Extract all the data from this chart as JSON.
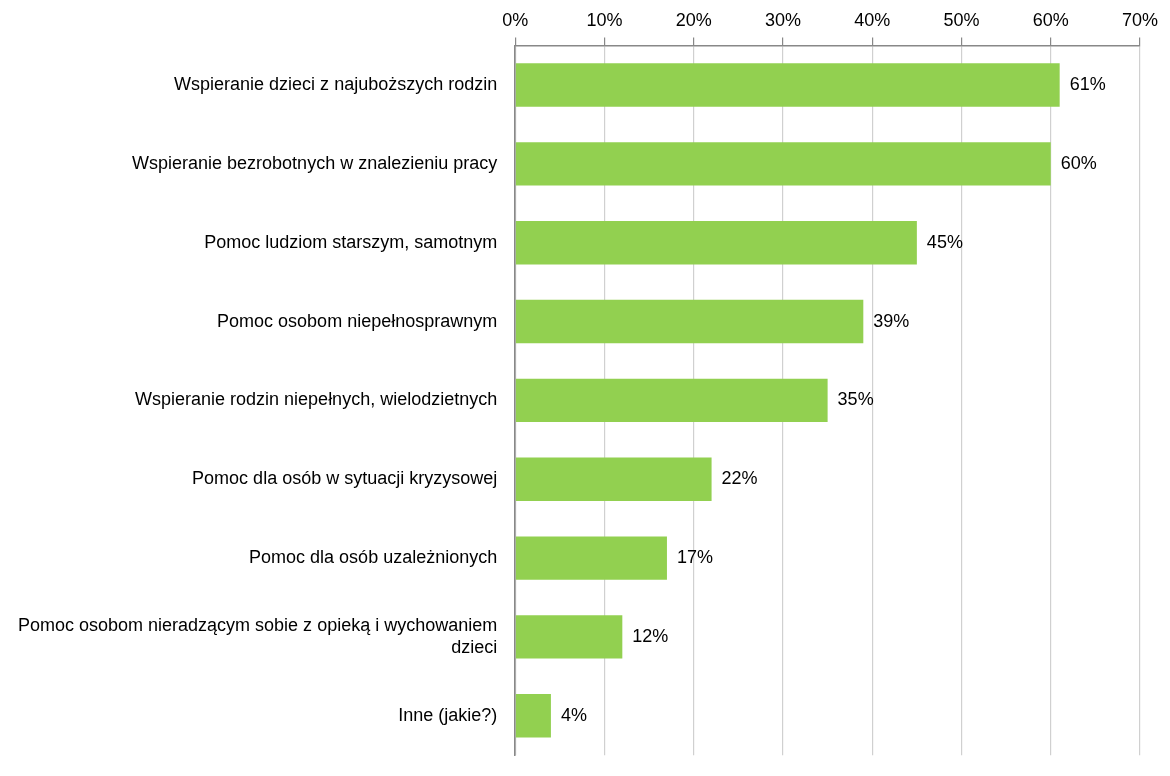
{
  "chart_data": {
    "type": "bar",
    "orientation": "horizontal",
    "categories": [
      "Wspieranie dzieci z najuboższych rodzin",
      "Wspieranie bezrobotnych w znalezieniu pracy",
      "Pomoc ludziom starszym, samotnym",
      "Pomoc osobom niepełnosprawnym",
      "Wspieranie rodzin niepełnych, wielodzietnych",
      "Pomoc dla osób w sytuacji kryzysowej",
      "Pomoc dla osób uzależnionych",
      "Pomoc osobom nieradzącym sobie z opieką i wychowaniem dzieci",
      "Inne (jakie?)"
    ],
    "values": [
      61,
      60,
      45,
      39,
      35,
      22,
      17,
      12,
      4
    ],
    "value_labels": [
      "61%",
      "60%",
      "45%",
      "39%",
      "35%",
      "22%",
      "17%",
      "12%",
      "4%"
    ],
    "color": "#92d050",
    "xlim": [
      0,
      70
    ],
    "xticks": [
      {
        "value": 0,
        "label": "0%"
      },
      {
        "value": 10,
        "label": "10%"
      },
      {
        "value": 20,
        "label": "20%"
      },
      {
        "value": 30,
        "label": "30%"
      },
      {
        "value": 40,
        "label": "40%"
      },
      {
        "value": 50,
        "label": "50%"
      },
      {
        "value": 60,
        "label": "60%"
      },
      {
        "value": 70,
        "label": "70%"
      }
    ],
    "grid": "x",
    "legend": false
  }
}
